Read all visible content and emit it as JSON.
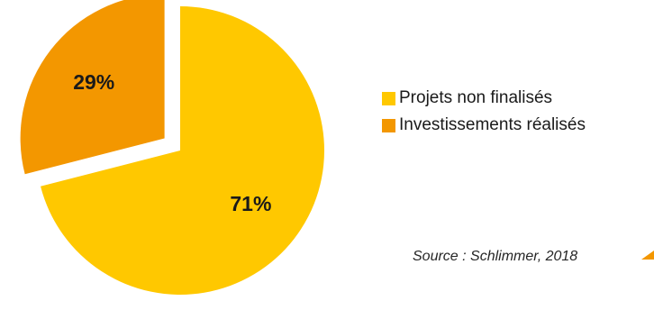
{
  "chart_data": {
    "type": "pie",
    "title": "",
    "slices": [
      {
        "label": "Projets non finalisés",
        "value": 71,
        "display": "71%",
        "color": "#FFC800",
        "exploded": false
      },
      {
        "label": "Investissements réalisés",
        "value": 29,
        "display": "29%",
        "color": "#F39700",
        "exploded": true
      }
    ],
    "legend_position": "right",
    "start_angle": "12 o'clock, clockwise"
  },
  "source_note": "Source : Schlimmer, 2018",
  "colors": {
    "background": "#FFFFFF",
    "text": "#1A1A1A",
    "accent_arrow": "#F39700"
  }
}
